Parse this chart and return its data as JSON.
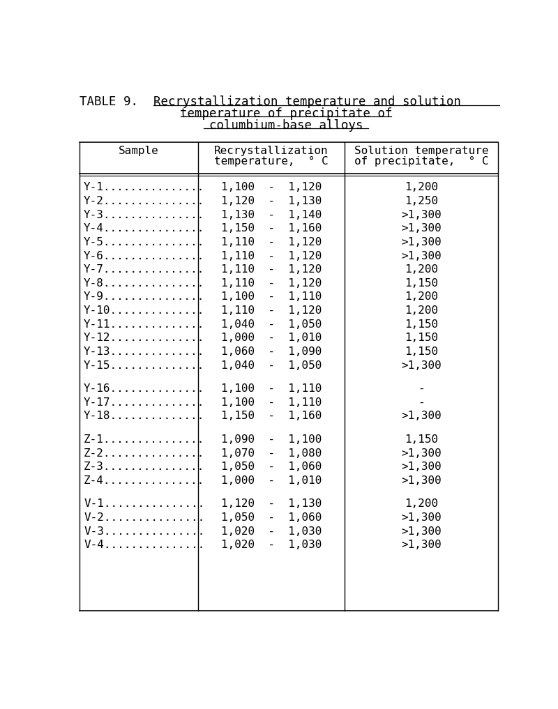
{
  "title_prefix": "TABLE 9.  - ",
  "title_underlined_1": "Recrystallization temperature and solution",
  "title_underlined_2": "temperature of precipitate of",
  "title_underlined_3": "columbium-base alloys",
  "col_header_1a": "Sample",
  "col_header_2a": "Recrystallization",
  "col_header_2b": "temperature,  ° C",
  "col_header_3a": "Solution temperature",
  "col_header_3b": "of precipitate,  ° C",
  "groups": [
    {
      "rows": [
        [
          "Y-1...............",
          "1,100  -  1,120",
          "1,200"
        ],
        [
          "Y-2...............",
          "1,120  -  1,130",
          "1,250"
        ],
        [
          "Y-3...............",
          "1,130  -  1,140",
          ">1,300"
        ],
        [
          "Y-4...............",
          "1,150  -  1,160",
          ">1,300"
        ],
        [
          "Y-5...............",
          "1,110  -  1,120",
          ">1,300"
        ],
        [
          "Y-6...............",
          "1,110  -  1,120",
          ">1,300"
        ],
        [
          "Y-7...............",
          "1,110  -  1,120",
          "1,200"
        ],
        [
          "Y-8...............",
          "1,110  -  1,120",
          "1,150"
        ],
        [
          "Y-9...............",
          "1,100  -  1,110",
          "1,200"
        ],
        [
          "Y-10..............",
          "1,110  -  1,120",
          "1,200"
        ],
        [
          "Y-11..............",
          "1,040  -  1,050",
          "1,150"
        ],
        [
          "Y-12..............",
          "1,000  -  1,010",
          "1,150"
        ],
        [
          "Y-13..............",
          "1,060  -  1,090",
          "1,150"
        ],
        [
          "Y-15..............",
          "1,040  -  1,050",
          ">1,300"
        ]
      ]
    },
    {
      "rows": [
        [
          "Y-16..............",
          "1,100  -  1,110",
          "-"
        ],
        [
          "Y-17..............",
          "1,100  -  1,110",
          "-"
        ],
        [
          "Y-18..............",
          "1,150  -  1,160",
          ">1,300"
        ]
      ]
    },
    {
      "rows": [
        [
          "Z-1...............",
          "1,090  -  1,100",
          "1,150"
        ],
        [
          "Z-2...............",
          "1,070  -  1,080",
          ">1,300"
        ],
        [
          "Z-3...............",
          "1,050  -  1,060",
          ">1,300"
        ],
        [
          "Z-4...............",
          "1,000  -  1,010",
          ">1,300"
        ]
      ]
    },
    {
      "rows": [
        [
          "V-1...............",
          "1,120  -  1,130",
          "1,200"
        ],
        [
          "V-2...............",
          "1,050  -  1,060",
          ">1,300"
        ],
        [
          "V-3...............",
          "1,020  -  1,030",
          ">1,300"
        ],
        [
          "V-4...............",
          "1,020  -  1,030",
          ">1,300"
        ]
      ]
    }
  ],
  "bg_color": "#ffffff",
  "text_color": "#000000",
  "font_size": 11.5,
  "title_font_size": 12.5
}
